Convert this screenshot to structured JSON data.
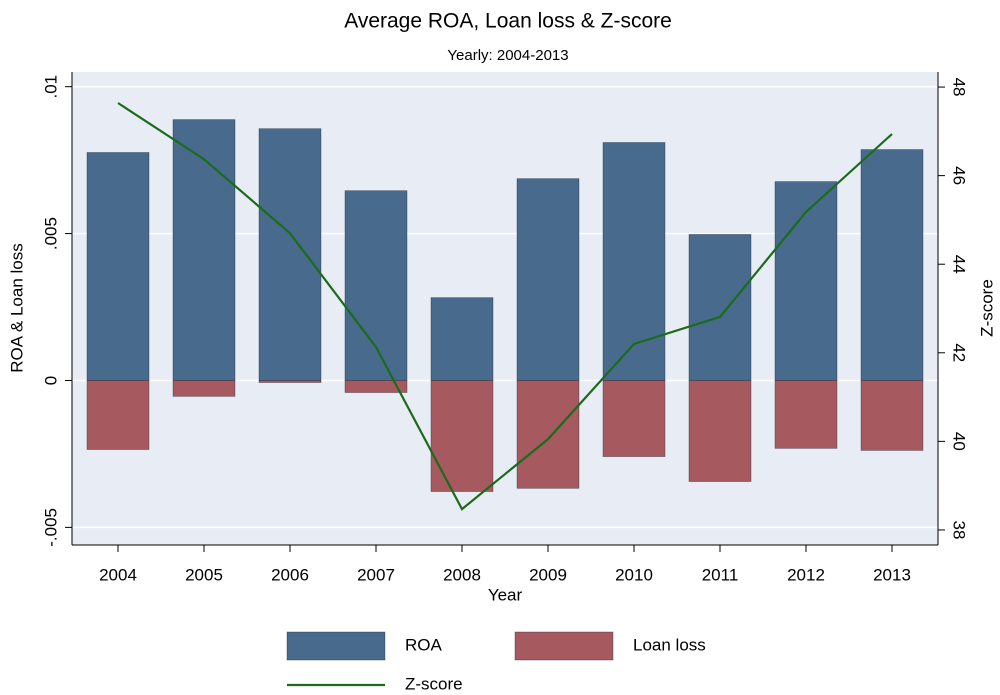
{
  "chart_data": {
    "type": "bar",
    "title": "Average ROA, Loan loss & Z-score",
    "subtitle": "Yearly: 2004-2013",
    "x_label": "Year",
    "y_label": "ROA & Loan loss",
    "y2_label": "Z-score",
    "categories": [
      "2004",
      "2005",
      "2006",
      "2007",
      "2008",
      "2009",
      "2010",
      "2011",
      "2012",
      "2013"
    ],
    "series": [
      {
        "name": "ROA",
        "color": "#476a8d",
        "type": "bar",
        "values": [
          0.00776,
          0.00888,
          0.00857,
          0.00646,
          0.00282,
          0.00687,
          0.0081,
          0.00497,
          0.00677,
          0.00786
        ]
      },
      {
        "name": "Loan loss",
        "color": "#a65a60",
        "type": "bar",
        "values": [
          -0.00235,
          -0.00054,
          -7e-05,
          -0.00041,
          -0.00378,
          -0.00367,
          -0.00259,
          -0.00344,
          -0.00231,
          -0.00238
        ]
      },
      {
        "name": "Z-score",
        "color": "#1b6b1b",
        "type": "line",
        "axis": "y2",
        "values": [
          47.64,
          46.37,
          44.7,
          42.13,
          38.47,
          40.05,
          42.2,
          42.81,
          45.18,
          46.94
        ]
      }
    ],
    "ylim": [
      -0.0056,
      0.0105
    ],
    "yticks": [
      {
        "value": -0.005,
        "label": "-.005"
      },
      0,
      {
        "value": 0.005,
        "label": ".005"
      },
      {
        "value": 0.01,
        "label": ".01"
      }
    ],
    "y2lim": [
      37.66,
      48.34
    ],
    "y2ticks": [
      38,
      40,
      42,
      44,
      46,
      48
    ],
    "grid": true,
    "legend": "bottom"
  }
}
